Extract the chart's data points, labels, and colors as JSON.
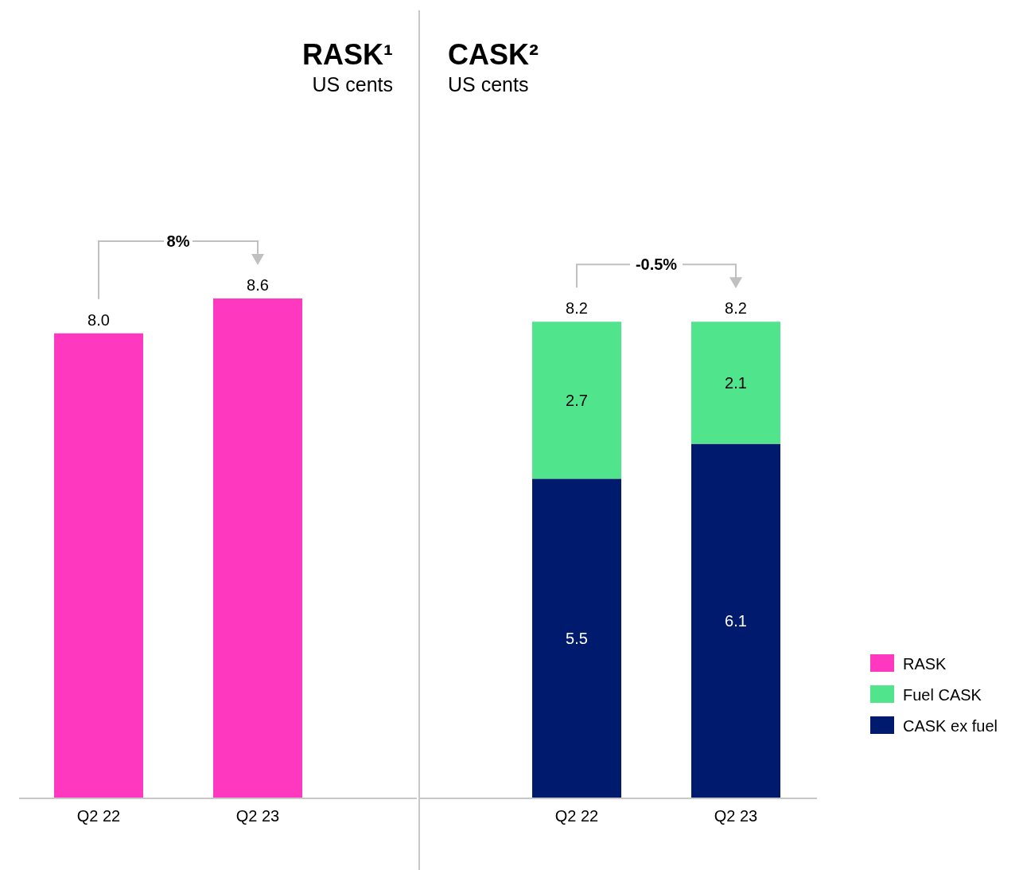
{
  "chart_data": [
    {
      "type": "bar",
      "title": "RASK¹",
      "subtitle": "US cents",
      "categories": [
        "Q2 22",
        "Q2 23"
      ],
      "series": [
        {
          "name": "RASK",
          "color": "#ff38c0",
          "values": [
            8.0,
            8.6
          ],
          "value_labels": [
            "8.0",
            "8.6"
          ]
        }
      ],
      "annotations": [
        "8%"
      ],
      "legend": "right"
    },
    {
      "type": "bar",
      "title": "CASK²",
      "subtitle": "US cents",
      "categories": [
        "Q2 22",
        "Q2 23"
      ],
      "stacked": true,
      "series": [
        {
          "name": "CASK ex fuel",
          "color": "#001b6e",
          "values": [
            5.5,
            6.1
          ]
        },
        {
          "name": "Fuel CASK",
          "color": "#50e58c",
          "values": [
            2.7,
            2.1
          ]
        }
      ],
      "data_labels": true,
      "totals": [
        "8.2",
        "8.2"
      ],
      "annotations": [
        "-0.5%"
      ],
      "legend": "right"
    }
  ]
}
